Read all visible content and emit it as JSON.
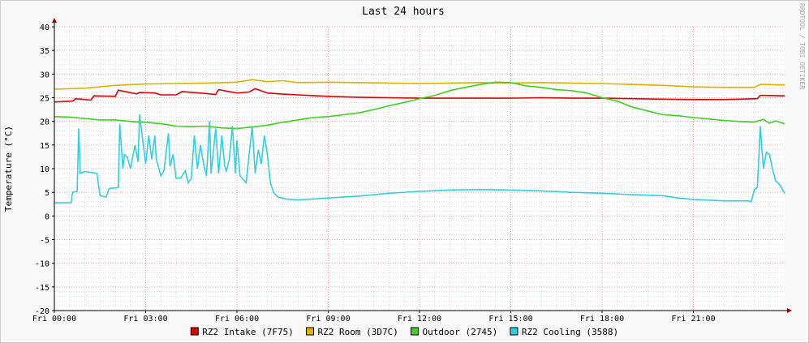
{
  "chart_data": {
    "type": "line",
    "title": "Last 24 hours",
    "ylabel": "Temperature (°C)",
    "watermark": "RRDTOOL / TOBI OETIKER",
    "xlim": [
      0,
      24
    ],
    "ylim": [
      -20,
      40
    ],
    "yticks": [
      40,
      35,
      30,
      25,
      20,
      15,
      10,
      5,
      0,
      -5,
      -10,
      -15,
      -20
    ],
    "xticks": [
      {
        "x": 0,
        "label": "Fri 00:00"
      },
      {
        "x": 3,
        "label": "Fri 03:00"
      },
      {
        "x": 6,
        "label": "Fri 06:00"
      },
      {
        "x": 9,
        "label": "Fri 09:00"
      },
      {
        "x": 12,
        "label": "Fri 12:00"
      },
      {
        "x": 15,
        "label": "Fri 15:00"
      },
      {
        "x": 18,
        "label": "Fri 18:00"
      },
      {
        "x": 21,
        "label": "Fri 21:00"
      }
    ],
    "grid": true,
    "legend_position": "bottom",
    "series": [
      {
        "name": "RZ2 Intake (7F75)",
        "color": "#e00000",
        "x": [
          0,
          0.6,
          0.7,
          1.2,
          1.3,
          2.0,
          2.1,
          2.7,
          2.8,
          3.3,
          3.5,
          4.0,
          4.2,
          5.3,
          5.4,
          6.0,
          6.4,
          6.6,
          7.0,
          7.4,
          8,
          9,
          10,
          11,
          12,
          13,
          14,
          15,
          16,
          17,
          18,
          19,
          20,
          21,
          22,
          23.1,
          23.2,
          24
        ],
        "values": [
          24.1,
          24.3,
          24.8,
          24.5,
          25.4,
          25.3,
          26.6,
          25.8,
          26.1,
          26.0,
          25.6,
          25.6,
          26.3,
          25.7,
          26.7,
          26.0,
          26.2,
          26.9,
          26.0,
          25.8,
          25.6,
          25.3,
          25.1,
          25.0,
          24.9,
          24.9,
          24.9,
          24.9,
          25.0,
          24.9,
          24.9,
          24.8,
          24.7,
          24.6,
          24.6,
          24.8,
          25.5,
          25.4
        ]
      },
      {
        "name": "RZ2 Room (3D7C)",
        "color": "#e0b000",
        "x": [
          0,
          1,
          2,
          3,
          4,
          5,
          6,
          6.5,
          7,
          7.5,
          8,
          9,
          10,
          11,
          12,
          13,
          14,
          15,
          16,
          17,
          18,
          19,
          20,
          21,
          22,
          23,
          23.2,
          24
        ],
        "values": [
          26.8,
          27.0,
          27.6,
          27.9,
          28.0,
          28.1,
          28.3,
          28.8,
          28.4,
          28.6,
          28.2,
          28.3,
          28.2,
          28.1,
          28.0,
          28.1,
          28.2,
          28.1,
          28.2,
          28.1,
          28.0,
          27.8,
          27.6,
          27.3,
          27.2,
          27.2,
          27.8,
          27.7
        ]
      },
      {
        "name": "Outdoor (2745)",
        "color": "#40d020",
        "x": [
          0,
          0.5,
          1,
          1.5,
          2,
          2.5,
          3,
          3.5,
          4,
          4.5,
          5,
          5.5,
          6,
          6.5,
          7,
          7.5,
          8,
          8.5,
          9,
          9.5,
          10,
          10.5,
          11,
          11.5,
          12,
          12.5,
          13,
          13.5,
          14,
          14.5,
          15,
          15.5,
          16,
          16.5,
          17,
          17.5,
          18,
          18.5,
          19,
          19.5,
          20,
          20.5,
          21,
          21.5,
          22,
          22.5,
          23,
          23.3,
          23.5,
          23.7,
          24
        ],
        "values": [
          21.0,
          20.9,
          20.6,
          20.3,
          20.3,
          20.0,
          19.8,
          19.5,
          19.0,
          18.9,
          19.0,
          18.6,
          18.5,
          18.8,
          19.2,
          19.8,
          20.3,
          20.8,
          21.0,
          21.4,
          21.8,
          22.5,
          23.3,
          24.0,
          24.8,
          25.5,
          26.5,
          27.2,
          27.8,
          28.3,
          28.2,
          27.5,
          27.2,
          26.7,
          26.5,
          26.0,
          25.0,
          24.3,
          23.0,
          22.2,
          21.4,
          21.2,
          20.8,
          20.5,
          20.2,
          20.0,
          19.9,
          20.4,
          19.6,
          20.1,
          19.5
        ]
      },
      {
        "name": "RZ2 Cooling (3588)",
        "color": "#30d0e0",
        "x": [
          0,
          0.55,
          0.6,
          0.75,
          0.8,
          0.85,
          1.0,
          1.4,
          1.5,
          1.7,
          1.8,
          2.1,
          2.15,
          2.25,
          2.3,
          2.4,
          2.5,
          2.65,
          2.75,
          2.8,
          3.0,
          3.1,
          3.2,
          3.3,
          3.35,
          3.5,
          3.6,
          3.75,
          3.8,
          3.9,
          4.0,
          4.15,
          4.3,
          4.4,
          4.5,
          4.6,
          4.7,
          4.8,
          4.9,
          5.0,
          5.1,
          5.15,
          5.3,
          5.4,
          5.5,
          5.6,
          5.65,
          5.75,
          5.85,
          5.95,
          6.0,
          6.1,
          6.3,
          6.5,
          6.6,
          6.7,
          6.8,
          6.9,
          7.0,
          7.1,
          7.2,
          7.35,
          7.5,
          7.6,
          7.8,
          8.0,
          9,
          10,
          11,
          12,
          13,
          14,
          15,
          16,
          17,
          18,
          19,
          20,
          20.5,
          21,
          22,
          22.8,
          22.9,
          23.0,
          23.1,
          23.2,
          23.3,
          23.4,
          23.5,
          23.6,
          23.7,
          23.85,
          24
        ],
        "values": [
          2.8,
          2.8,
          5.0,
          5.2,
          18.5,
          9.0,
          9.4,
          9.0,
          4.3,
          4.0,
          5.8,
          6.0,
          19.5,
          10.0,
          13.0,
          12.4,
          10.0,
          15.0,
          11.5,
          21.5,
          11.0,
          17.0,
          12.0,
          17.0,
          12.0,
          8.5,
          9.5,
          17.5,
          10.5,
          13.0,
          8.0,
          8.0,
          9.5,
          7.0,
          8.0,
          17.0,
          10.0,
          15.0,
          11.0,
          8.5,
          20.0,
          9.0,
          18.5,
          9.0,
          17.0,
          10.5,
          9.5,
          12.0,
          19.0,
          9.0,
          16.0,
          8.5,
          7.0,
          19.0,
          9.0,
          14.0,
          11.0,
          17.0,
          13.0,
          7.0,
          5.0,
          4.0,
          3.8,
          3.6,
          3.5,
          3.4,
          3.8,
          4.2,
          4.8,
          5.2,
          5.5,
          5.6,
          5.5,
          5.3,
          5.0,
          4.8,
          4.5,
          4.3,
          3.8,
          3.5,
          3.2,
          3.2,
          3.0,
          5.5,
          6.0,
          19.0,
          10.0,
          13.5,
          13.0,
          10.0,
          7.5,
          6.5,
          4.8
        ]
      }
    ]
  }
}
